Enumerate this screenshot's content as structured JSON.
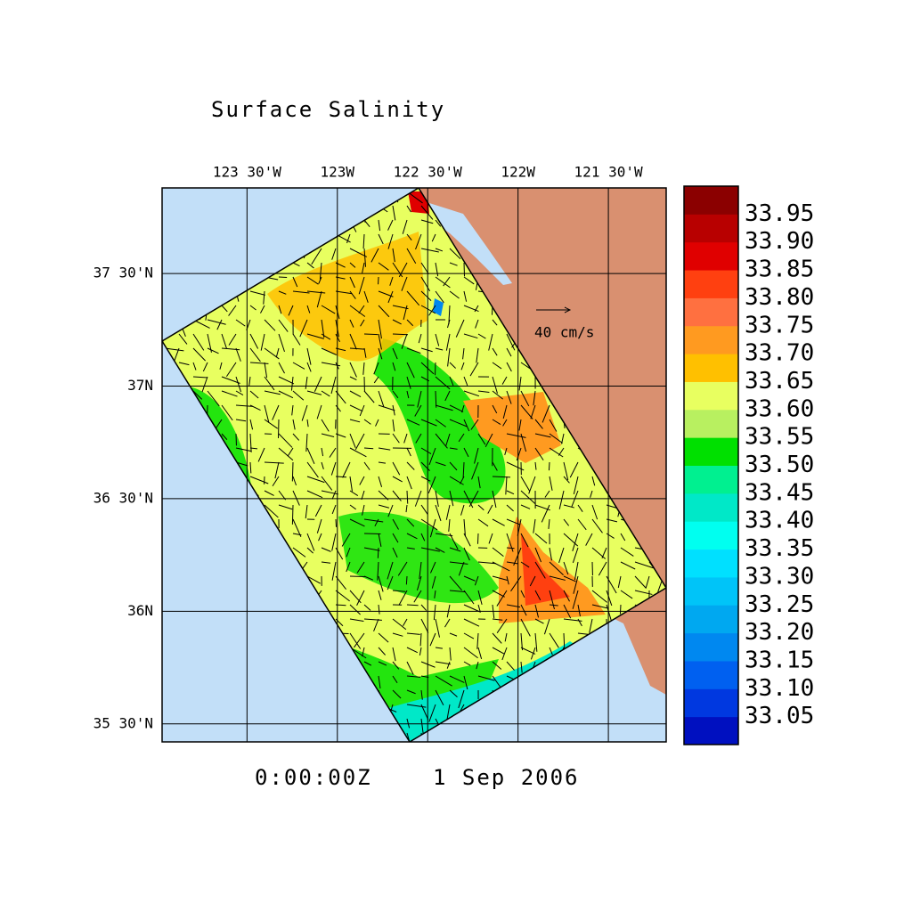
{
  "title": "Surface Salinity",
  "map": {
    "xlim": [
      -123.97,
      -121.18
    ],
    "ylim": [
      35.42,
      37.88
    ],
    "xticks": [
      {
        "value": -123.5,
        "label": "123 30'W"
      },
      {
        "value": -123,
        "label": "123W"
      },
      {
        "value": -122.5,
        "label": "122 30'W"
      },
      {
        "value": -122,
        "label": "122W"
      },
      {
        "value": -121.5,
        "label": "121 30'W"
      }
    ],
    "yticks": [
      {
        "value": 37.5,
        "label": "37 30'N"
      },
      {
        "value": 37,
        "label": "37N"
      },
      {
        "value": 36.5,
        "label": "36 30'N"
      },
      {
        "value": 36,
        "label": "36N"
      },
      {
        "value": 35.5,
        "label": "35 30'N"
      }
    ],
    "vector_scale_label": "40 cm/s"
  },
  "colorbar": {
    "lim": [
      33.0,
      34.0
    ],
    "levels": [
      33.05,
      {
        "value": 33.1,
        "label": "33.10"
      },
      33.15,
      {
        "value": 33.2,
        "label": "33.20"
      },
      33.25,
      {
        "value": 33.3,
        "label": "33.30"
      },
      33.35,
      {
        "value": 33.4,
        "label": "33.40"
      },
      33.45,
      {
        "value": 33.5,
        "label": "33.50"
      },
      33.55,
      {
        "value": 33.6,
        "label": "33.60"
      },
      33.65,
      {
        "value": 33.7,
        "label": "33.70"
      },
      33.75,
      {
        "value": 33.8,
        "label": "33.80"
      },
      33.85,
      {
        "value": 33.9,
        "label": "33.90"
      },
      33.95
    ],
    "colors": [
      "#0010c0",
      "#0038e0",
      "#0060f0",
      "#0088f0",
      "#00a8f0",
      "#00c4f8",
      "#00e0ff",
      "#00fff0",
      "#00e8c8",
      "#00f090",
      "#00e000",
      "#b8f060",
      "#e8ff60",
      "#ffc000",
      "#ff9a20",
      "#ff7040",
      "#ff4010",
      "#e00000",
      "#b80000",
      "#8b0000"
    ]
  },
  "time": "0:00:00Z",
  "date": "1 Sep 2006"
}
